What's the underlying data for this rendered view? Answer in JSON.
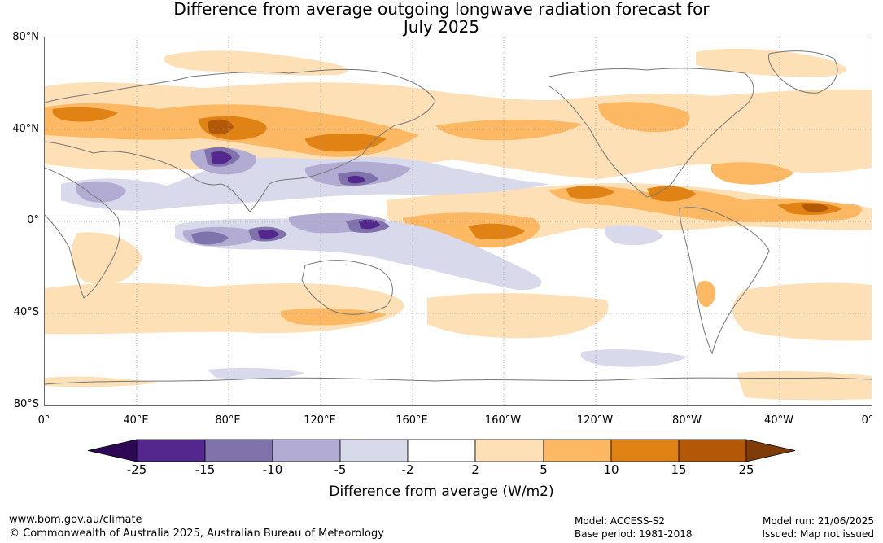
{
  "title": {
    "line1": "Difference from average outgoing longwave radiation forecast for",
    "line2": "July 2025"
  },
  "map": {
    "lat_ticks": [
      "80°N",
      "40°N",
      "0°",
      "40°S",
      "80°S"
    ],
    "lon_ticks": [
      "0°",
      "40°E",
      "80°E",
      "120°E",
      "160°E",
      "160°W",
      "120°W",
      "80°W",
      "40°W",
      "0°"
    ],
    "grid": true,
    "colors": {
      "strong_negative_extreme": "#2e0854",
      "neg_25_15": "#54278f",
      "neg_15_10": "#8073ac",
      "neg_10_5": "#b2abd2",
      "neg_5_2": "#d8daeb",
      "neutral": "#ffffff",
      "pos_2_5": "#fee0b6",
      "pos_5_10": "#fdb863",
      "pos_10_15": "#e08214",
      "pos_15_25": "#b35806",
      "strong_positive_extreme": "#7f3b08",
      "coastline": "#777777"
    }
  },
  "colorbar": {
    "labels": [
      "-25",
      "-15",
      "-10",
      "-5",
      "-2",
      "2",
      "5",
      "10",
      "15",
      "25"
    ],
    "title": "Difference from average (W/m2)"
  },
  "footer": {
    "website": "www.bom.gov.au/climate",
    "copyright": "© Commonwealth of Australia 2025, Australian Bureau of Meteorology",
    "model": "Model: ACCESS-S2",
    "base_period": "Base period: 1981-2018",
    "model_run": "Model run: 21/06/2025",
    "issued": "Issued: Map not issued"
  }
}
